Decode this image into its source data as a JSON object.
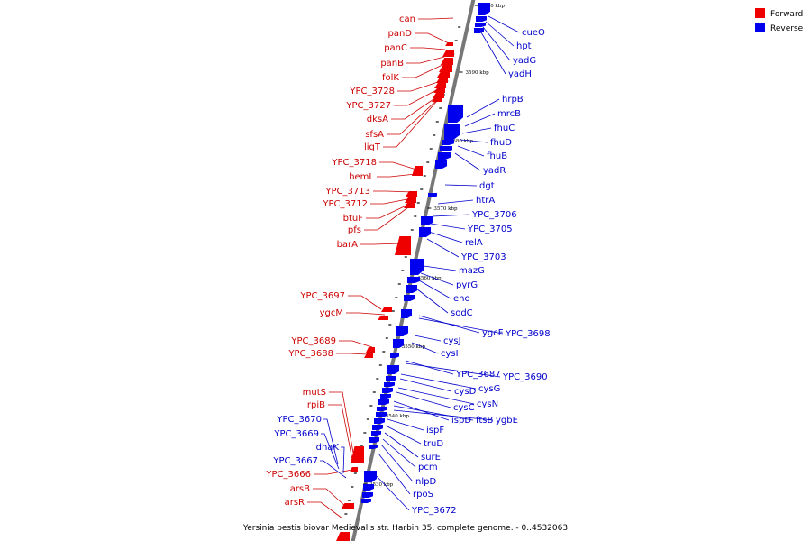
{
  "legend": [
    {
      "label": "Forward",
      "color": "#ee0000"
    },
    {
      "label": "Reverse",
      "color": "#0000ee"
    }
  ],
  "caption": "Yersinia pestis biovar Medievalis str. Harbin 35, complete genome. - 0..4532063",
  "colors": {
    "forward": "#ee0000",
    "reverse": "#0000ee",
    "forward_label": "#cc0000",
    "reverse_label": "#0000cc",
    "backbone": "#777777"
  },
  "ticks": [
    "3600 kbp",
    "3590 kbp",
    "3580 kbp",
    "3570 kbp",
    "3560 kbp",
    "3550 kbp",
    "3540 kbp",
    "3530 kbp"
  ],
  "forward_genes": [
    "can",
    "panD",
    "panC",
    "panB",
    "folK",
    "YPC_3728",
    "YPC_3727",
    "dksA",
    "sfsA",
    "ligT",
    "YPC_3718",
    "hemL",
    "YPC_3713",
    "YPC_3712",
    "btuF",
    "pfs",
    "barA",
    "YPC_3697",
    "ygcM",
    "YPC_3689",
    "YPC_3688",
    "mutS",
    "rpiB",
    "YPC_3666",
    "arsB",
    "arsR"
  ],
  "reverse_genes": [
    "cueO",
    "hpt",
    "yadG",
    "yadH",
    "hrpB",
    "mrcB",
    "fhuC",
    "fhuD",
    "fhuB",
    "yadR",
    "dgt",
    "htrA",
    "YPC_3706",
    "YPC_3705",
    "relA",
    "YPC_3703",
    "mazG",
    "pyrG",
    "eno",
    "sodC",
    "ygcF",
    "YPC_3698",
    "cysJ",
    "cysI",
    "YPC_3687",
    "YPC_3690",
    "cysG",
    "cysD",
    "cysN",
    "cysC",
    "ispD",
    "ftsB",
    "ygbE",
    "ispF",
    "truD",
    "surE",
    "pcm",
    "nlpD",
    "rpoS",
    "YPC_3672",
    "YPC_3670",
    "YPC_3669",
    "dhaK",
    "YPC_3667"
  ]
}
